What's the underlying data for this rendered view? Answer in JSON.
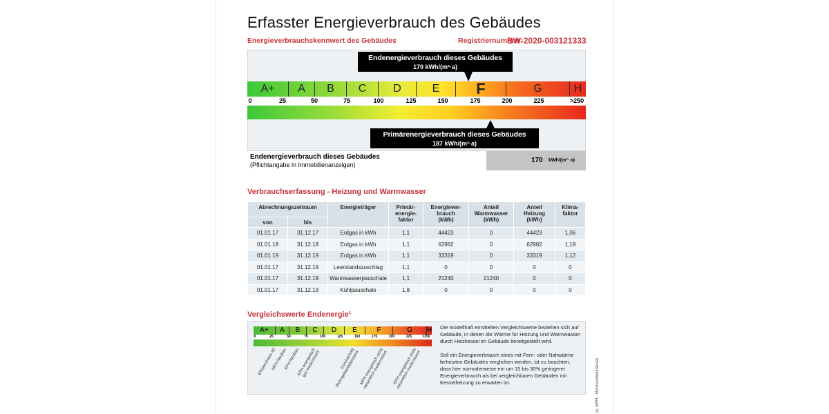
{
  "title": "Erfasster Energieverbrauch des Gebäudes",
  "subtitle": "Energieverbrauchskennwert des Gebäudes",
  "registration": {
    "label": "Registriernummer:",
    "value": "BW-2020-003121333"
  },
  "scale": {
    "classes": [
      "A+",
      "A",
      "B",
      "C",
      "D",
      "E",
      "F",
      "G",
      "H"
    ],
    "highlight": "F",
    "ticks": [
      "0",
      "25",
      "50",
      "75",
      "100",
      "125",
      "150",
      "175",
      "200",
      "225",
      ">250"
    ]
  },
  "end_energy_callout": {
    "title": "Endenergieverbrauch dieses Gebäudes",
    "value": "170 kWh/(m²·a)",
    "numeric": 170
  },
  "primary_energy_callout": {
    "title": "Primärenergieverbrauch dieses Gebäudes",
    "value": "187 kWh/(m²·a)",
    "numeric": 187
  },
  "summary": {
    "label": "Endenergieverbrauch dieses Gebäudes",
    "note": "(Pflichtangabe in Immobilienanzeigen)",
    "value": "170",
    "unit": "kWh/(m²· a)"
  },
  "consumption": {
    "heading": "Verbrauchserfassung - Heizung und Warmwasser",
    "headers": {
      "period": "Abrechnungszeitraum",
      "from": "von",
      "to": "bis",
      "carrier": "Energieträger",
      "pef": "Primär-\nenergie-\nfaktor",
      "use": "Energiever-\nbrauch\n(kWh)",
      "ww": "Anteil\nWarmwasser\n(kWh)",
      "heat": "Anteil\nHeizung\n(kWh)",
      "klima": "Klima-\nfaktor"
    },
    "rows": [
      [
        "01.01.17",
        "31.12.17",
        "Erdgas in kWh",
        "1,1",
        "44423",
        "0",
        "44423",
        "1,06"
      ],
      [
        "01.01.18",
        "31.12.18",
        "Erdgas in kWh",
        "1,1",
        "62982",
        "0",
        "62982",
        "1,19"
      ],
      [
        "01.01.19",
        "31.12.19",
        "Erdgas in kWh",
        "1,1",
        "33319",
        "0",
        "33319",
        "1,12"
      ],
      [
        "01.01.17",
        "31.12.19",
        "Leerstandszuschlag",
        "1,1",
        "0",
        "0",
        "0",
        "0"
      ],
      [
        "01.01.17",
        "31.12.19",
        "Warmwasserpauschale",
        "1,1",
        "21240",
        "21240",
        "0",
        "0"
      ],
      [
        "01.01.17",
        "31.12.19",
        "Kühlpauschale",
        "1,8",
        "0",
        "0",
        "0",
        "0"
      ]
    ]
  },
  "comparison": {
    "heading": "Vergleichswerte Endenergie¹",
    "references": [
      "Effizienzhaus 40",
      "MFH Neubau",
      "EFH Neubau",
      "EFH energetisch\ngut modernisiert",
      "Durchschnitt\nWohngebäudebestand",
      "MFH energetisch nicht\nwesentlich modernisiert",
      "EFH energetisch nicht\nwesentlich modernisiert"
    ],
    "text1": "Die modellhaft ermittelten Vergleichswerte beziehen sich auf Gebäude, in denen die Wärme für Heizung und Warmwasser durch Heizkessel im Gebäude bereitgestellt wird.",
    "text2": "Soll ein Energieverbrauch eines mit Fern- oder Nahwärme beheizten Gebäudes verglichen werden, ist zu beachten, dass hier normalerweise ein um 15 bis 30% geringerer Energieverbrauch als bei vergleichbaren Gebäuden mit Kesselheizung zu erwarten ist."
  },
  "side_note": "er, MFH - Mehrfamilienhäuser",
  "colors": {
    "heading_red": "#c8323a",
    "panel": "#eef1f4"
  }
}
